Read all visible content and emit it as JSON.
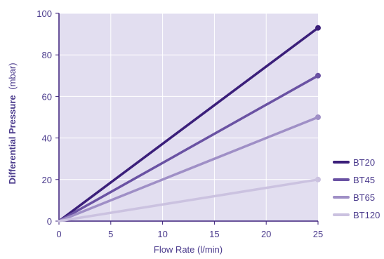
{
  "chart_data": {
    "type": "line",
    "title": "",
    "xlabel": "Flow Rate (l/min)",
    "ylabel_bold": "Differential Pressure",
    "ylabel_unit": "(mbar)",
    "xlim": [
      0,
      25
    ],
    "ylim": [
      0,
      100
    ],
    "xticks": [
      0,
      5,
      10,
      15,
      20,
      25
    ],
    "yticks": [
      0,
      20,
      40,
      60,
      80,
      100
    ],
    "grid": true,
    "legend_position": "right",
    "series": [
      {
        "name": "BT20",
        "color": "#3b1f7a",
        "x": [
          0,
          25
        ],
        "y": [
          0,
          93
        ]
      },
      {
        "name": "BT45",
        "color": "#6a52a3",
        "x": [
          0,
          25
        ],
        "y": [
          0,
          70
        ]
      },
      {
        "name": "BT65",
        "color": "#9f8fc6",
        "x": [
          0,
          25
        ],
        "y": [
          0,
          50
        ]
      },
      {
        "name": "BT120",
        "color": "#cbc2e0",
        "x": [
          0,
          25
        ],
        "y": [
          0,
          20
        ]
      }
    ],
    "colors": {
      "plot_background": "#e2def0",
      "grid": "#ffffff",
      "axis": "#3b1f7a",
      "text": "#4a3a8c"
    }
  }
}
